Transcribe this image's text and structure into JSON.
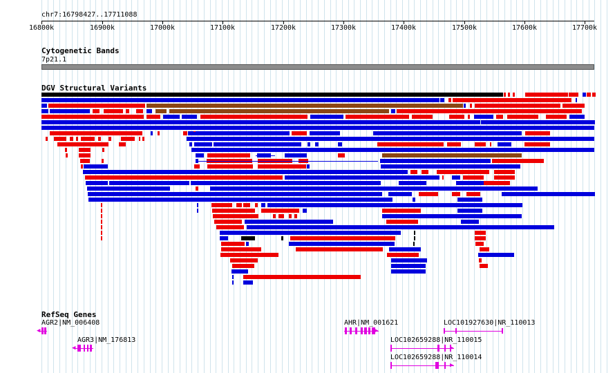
{
  "ruler": {
    "coordinate_label": "chr7:16798427..17711088",
    "ticks": [
      "16800k",
      "16900k",
      "17000k",
      "17100k",
      "17200k",
      "17300k",
      "17400k",
      "17500k",
      "17600k",
      "17700k"
    ]
  },
  "tracks": {
    "cytoband": {
      "title": "Cytogenetic Bands",
      "band_label": "7p21.1"
    },
    "dgv": {
      "title": "DGV Structural Variants"
    },
    "refseq": {
      "title": "RefSeq Genes",
      "genes": [
        {
          "label": "AGR2|NM_006408"
        },
        {
          "label": "AGR3|NM_176813"
        },
        {
          "label": "AHR|NM_001621"
        },
        {
          "label": "LOC101927630|NR_110013"
        },
        {
          "label": "LOC102659288|NR_110015"
        },
        {
          "label": "LOC102659288|NR_110014"
        }
      ]
    }
  },
  "colors": {
    "gain": "#0000dd",
    "loss": "#ee0000",
    "gain_loss": "#8b4513",
    "inversion": "#000000",
    "gene": "#e000e0",
    "grid": "#cfe3ec"
  }
}
